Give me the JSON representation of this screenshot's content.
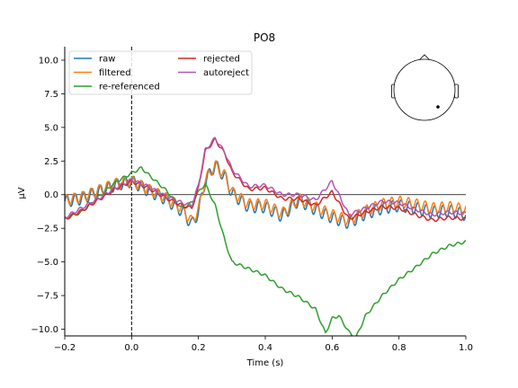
{
  "chart_data": {
    "type": "line",
    "title": "PO8",
    "xlabel": "Time (s)",
    "ylabel": "µV",
    "xlim": [
      -0.2,
      1.0
    ],
    "ylim": [
      -10.5,
      11.0
    ],
    "xticks": [
      -0.2,
      0.0,
      0.2,
      0.4,
      0.6,
      0.8,
      1.0
    ],
    "xtick_labels": [
      "−0.2",
      "0.0",
      "0.2",
      "0.4",
      "0.6",
      "0.8",
      "1.0"
    ],
    "yticks": [
      10.0,
      7.5,
      5.0,
      2.5,
      0.0,
      -2.5,
      -5.0,
      -7.5,
      -10.0
    ],
    "ytick_labels": [
      "10.0",
      "7.5",
      "5.0",
      "2.5",
      "0.0",
      "−2.5",
      "−5.0",
      "−7.5",
      "−10.0"
    ],
    "event_marker_x": 0.0,
    "zero_line_y": 0.0,
    "legend_position": "top-left",
    "inset": "sensor location head map, marker at right-posterior",
    "series": [
      {
        "name": "raw",
        "color": "#1f77b4",
        "x": [
          -0.2,
          -0.15,
          -0.1,
          -0.05,
          0.0,
          0.05,
          0.1,
          0.15,
          0.18,
          0.2,
          0.22,
          0.25,
          0.28,
          0.3,
          0.35,
          0.4,
          0.45,
          0.5,
          0.55,
          0.6,
          0.65,
          0.7,
          0.75,
          0.8,
          0.85,
          0.9,
          0.95,
          1.0
        ],
        "y": [
          -0.5,
          -0.3,
          0.2,
          0.7,
          1.0,
          0.3,
          -0.3,
          -1.2,
          -2.2,
          -1.3,
          1.0,
          2.2,
          1.3,
          0.1,
          -0.9,
          -0.9,
          -1.6,
          -0.4,
          -1.1,
          -1.7,
          -2.1,
          -1.4,
          -1.0,
          -0.8,
          -1.0,
          -1.3,
          -1.2,
          -1.5
        ],
        "oscillation_amplitude": 0.45,
        "oscillation_frequency_hz": 40
      },
      {
        "name": "filtered",
        "color": "#ff7f0e",
        "x": [
          -0.2,
          -0.15,
          -0.1,
          -0.05,
          0.0,
          0.05,
          0.1,
          0.15,
          0.18,
          0.2,
          0.22,
          0.25,
          0.28,
          0.3,
          0.35,
          0.4,
          0.45,
          0.5,
          0.55,
          0.6,
          0.65,
          0.7,
          0.75,
          0.8,
          0.85,
          0.9,
          0.95,
          1.0
        ],
        "y": [
          -0.4,
          -0.2,
          0.3,
          0.8,
          1.0,
          0.4,
          -0.2,
          -1.0,
          -2.0,
          -1.1,
          1.1,
          2.2,
          1.4,
          0.2,
          -0.7,
          -0.7,
          -1.4,
          -0.3,
          -0.9,
          -1.5,
          -1.9,
          -1.2,
          -0.7,
          -0.5,
          -0.7,
          -1.0,
          -0.9,
          -1.1
        ],
        "oscillation_amplitude": 0.4,
        "oscillation_frequency_hz": 40
      },
      {
        "name": "re-referenced",
        "color": "#2ca02c",
        "x": [
          -0.2,
          -0.15,
          -0.1,
          -0.05,
          0.0,
          0.03,
          0.05,
          0.1,
          0.15,
          0.18,
          0.2,
          0.22,
          0.25,
          0.28,
          0.3,
          0.35,
          0.4,
          0.45,
          0.5,
          0.55,
          0.58,
          0.6,
          0.62,
          0.65,
          0.67,
          0.7,
          0.75,
          0.8,
          0.85,
          0.9,
          0.95,
          1.0
        ],
        "y": [
          -1.8,
          -1.3,
          -0.2,
          0.9,
          1.6,
          2.0,
          1.5,
          0.4,
          -1.0,
          -0.6,
          0.2,
          0.8,
          -0.8,
          -3.5,
          -5.0,
          -5.5,
          -6.0,
          -7.0,
          -7.6,
          -8.5,
          -10.3,
          -9.2,
          -9.0,
          -10.2,
          -10.7,
          -9.0,
          -7.5,
          -6.3,
          -5.4,
          -4.4,
          -3.8,
          -3.5
        ],
        "oscillation_amplitude": 0.1,
        "oscillation_frequency_hz": 40
      },
      {
        "name": "rejected",
        "color": "#d62728",
        "x": [
          -0.2,
          -0.15,
          -0.1,
          -0.05,
          0.0,
          0.05,
          0.1,
          0.15,
          0.18,
          0.2,
          0.22,
          0.25,
          0.28,
          0.3,
          0.35,
          0.4,
          0.45,
          0.5,
          0.55,
          0.6,
          0.65,
          0.7,
          0.75,
          0.8,
          0.85,
          0.9,
          0.95,
          1.0
        ],
        "y": [
          -1.8,
          -1.2,
          -0.4,
          0.4,
          1.0,
          0.5,
          -0.2,
          -0.8,
          -1.0,
          0.5,
          3.2,
          4.1,
          3.0,
          1.7,
          0.4,
          0.5,
          -0.3,
          -0.3,
          -0.8,
          0.2,
          -1.8,
          -1.3,
          -0.9,
          -1.0,
          -1.5,
          -1.9,
          -1.7,
          -1.8
        ],
        "oscillation_amplitude": 0.12,
        "oscillation_frequency_hz": 40
      },
      {
        "name": "autoreject",
        "color": "#b155b3",
        "x": [
          -0.2,
          -0.15,
          -0.1,
          -0.05,
          0.0,
          0.05,
          0.1,
          0.15,
          0.18,
          0.2,
          0.22,
          0.25,
          0.28,
          0.3,
          0.35,
          0.4,
          0.45,
          0.5,
          0.55,
          0.6,
          0.65,
          0.7,
          0.75,
          0.8,
          0.85,
          0.9,
          0.95,
          1.0
        ],
        "y": [
          -1.7,
          -1.0,
          -0.3,
          0.5,
          1.1,
          0.6,
          -0.1,
          -0.6,
          -0.8,
          0.7,
          3.3,
          4.2,
          3.1,
          1.9,
          0.6,
          0.7,
          0.0,
          0.0,
          -0.4,
          1.0,
          -1.5,
          -1.0,
          -0.5,
          -0.6,
          -1.1,
          -1.5,
          -1.3,
          -1.4
        ],
        "oscillation_amplitude": 0.12,
        "oscillation_frequency_hz": 40
      }
    ]
  }
}
